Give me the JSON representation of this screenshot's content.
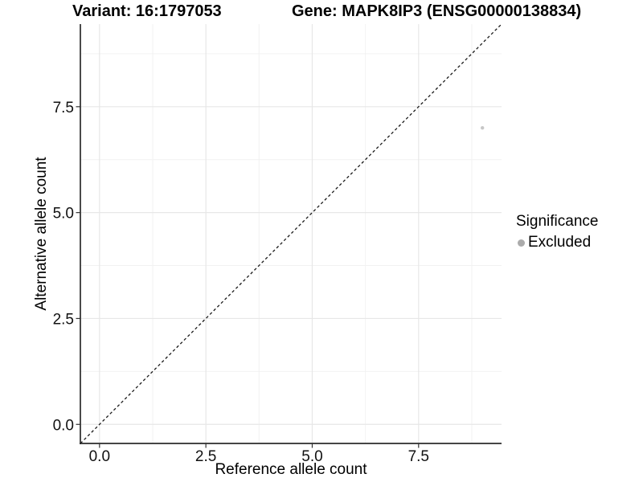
{
  "chart_data": {
    "type": "scatter",
    "title_variant": "Variant: 16:1797053",
    "title_gene": "Gene: MAPK8IP3 (ENSG00000138834)",
    "xlabel": "Reference allele count",
    "ylabel": "Alternative allele count",
    "xlim": [
      -0.45,
      9.45
    ],
    "ylim": [
      -0.45,
      9.45
    ],
    "x_major_ticks": [
      0,
      2.5,
      5,
      7.5
    ],
    "x_tick_labels": [
      "0.0",
      "2.5",
      "5.0",
      "7.5"
    ],
    "y_major_ticks": [
      0,
      2.5,
      5,
      7.5
    ],
    "y_tick_labels": [
      "0.0",
      "2.5",
      "5.0",
      "7.5"
    ],
    "x_minor_gridlines": [
      1.25,
      3.75,
      6.25,
      8.75
    ],
    "y_minor_gridlines": [
      1.25,
      3.75,
      6.25,
      8.75
    ],
    "grid": "major+minor",
    "identity_line": {
      "style": "dashed",
      "label": "y = x",
      "x1": -0.45,
      "y1": -0.45,
      "x2": 9.45,
      "y2": 9.45
    },
    "series": [
      {
        "name": "Excluded",
        "color": "#c7c7c7",
        "point_radius": 2.2,
        "points": [
          {
            "x": 9,
            "y": 7
          }
        ]
      }
    ],
    "legend": {
      "title": "Significance",
      "position": "right",
      "items": [
        {
          "label": "Excluded",
          "color": "#ababab"
        }
      ]
    },
    "colors": {
      "background": "#ffffff",
      "axis_line": "#2b2b2b",
      "grid_major": "#e7e7e7",
      "grid_minor": "#f2f2f2",
      "identity_line": "#1a1a1a",
      "tick_mark": "#333333",
      "tick_label": "#111111",
      "text": "#000000"
    }
  }
}
